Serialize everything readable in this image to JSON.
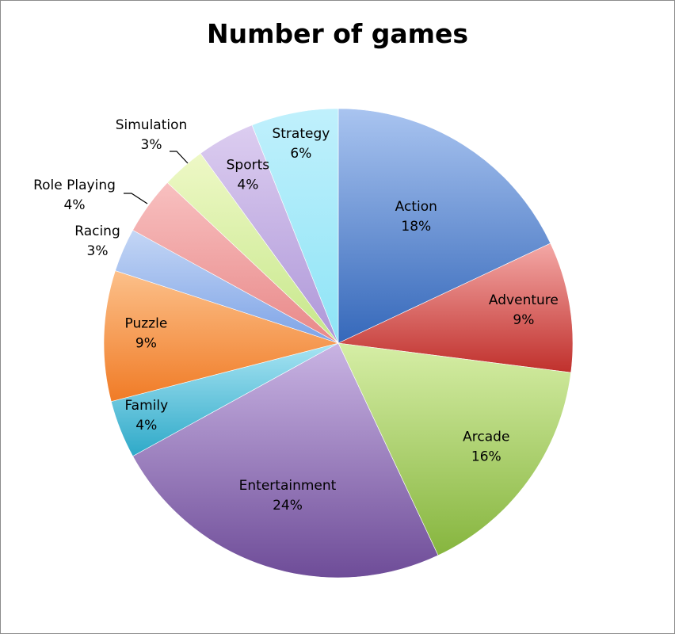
{
  "chart_data": {
    "type": "pie",
    "title": "Number of games",
    "start": "top",
    "direction": "clockwise",
    "slices": [
      {
        "label": "Action",
        "value": 18,
        "value_label": "18%",
        "color_light": "#a9c4f0",
        "color_dark": "#3568ba"
      },
      {
        "label": "Adventure",
        "value": 9,
        "value_label": "9%",
        "color_light": "#f4a8a6",
        "color_dark": "#c0302c"
      },
      {
        "label": "Arcade",
        "value": 16,
        "value_label": "16%",
        "color_light": "#d6eea6",
        "color_dark": "#86b53e"
      },
      {
        "label": "Entertainment",
        "value": 24,
        "value_label": "24%",
        "color_light": "#c9b4e3",
        "color_dark": "#6e4c98"
      },
      {
        "label": "Family",
        "value": 4,
        "value_label": "4%",
        "color_light": "#a8e4f3",
        "color_dark": "#2ea9c8"
      },
      {
        "label": "Puzzle",
        "value": 9,
        "value_label": "9%",
        "color_light": "#fcc08a",
        "color_dark": "#f07b26"
      },
      {
        "label": "Racing",
        "value": 3,
        "value_label": "3%",
        "color_light": "#c4d6f5",
        "color_dark": "#7da3e6"
      },
      {
        "label": "Role Playing",
        "value": 4,
        "value_label": "4%",
        "color_light": "#f8c0c0",
        "color_dark": "#e88888"
      },
      {
        "label": "Simulation",
        "value": 3,
        "value_label": "3%",
        "color_light": "#eef8c6",
        "color_dark": "#c6e78a"
      },
      {
        "label": "Sports",
        "value": 4,
        "value_label": "4%",
        "color_light": "#dccdf0",
        "color_dark": "#ae97d8"
      },
      {
        "label": "Strategy",
        "value": 6,
        "value_label": "6%",
        "color_light": "#c0f0fc",
        "color_dark": "#8ee4f6"
      }
    ]
  }
}
